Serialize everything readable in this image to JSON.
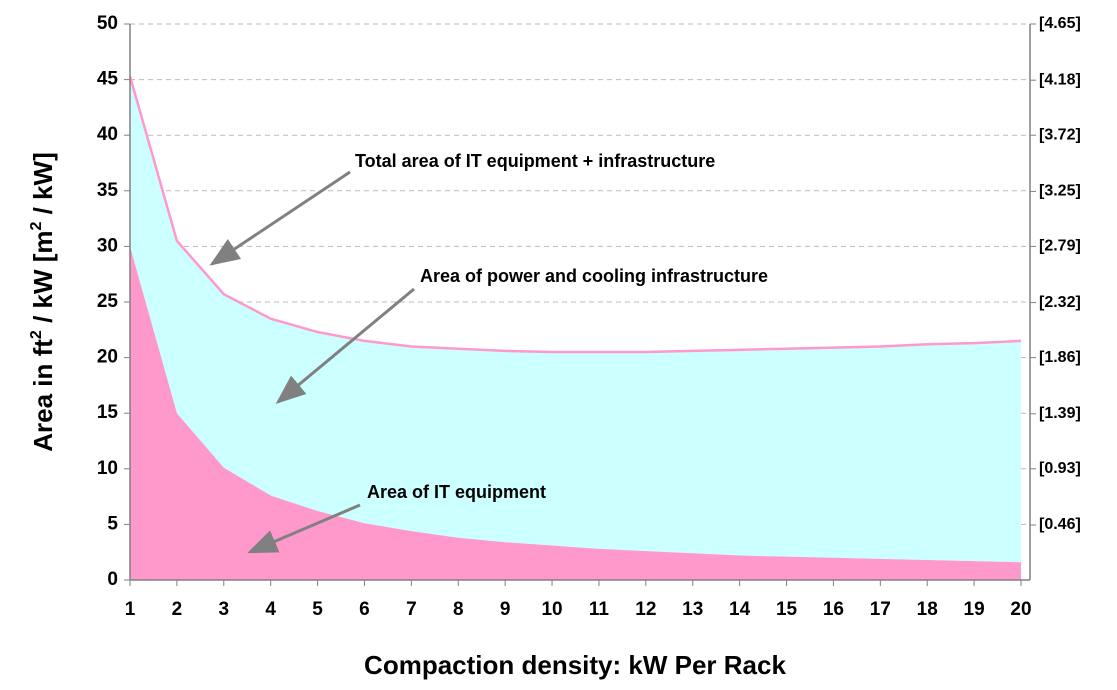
{
  "chart_data": {
    "type": "area",
    "xlabel": "Compaction density: kW Per Rack",
    "ylabel_parts": [
      "Area in ft",
      "2",
      " / kW  [m",
      "2",
      " / kW]"
    ],
    "x": [
      1,
      2,
      3,
      4,
      5,
      6,
      7,
      8,
      9,
      10,
      11,
      12,
      13,
      14,
      15,
      16,
      17,
      18,
      19,
      20
    ],
    "series": [
      {
        "color": "#ff99cc",
        "values": [
          30,
          15,
          10.1,
          7.6,
          6.2,
          5.1,
          4.4,
          3.8,
          3.4,
          3.1,
          2.8,
          2.6,
          2.4,
          2.2,
          2.1,
          2.0,
          1.9,
          1.8,
          1.7,
          1.6
        ]
      },
      {
        "color": "#ccffff",
        "line_color": "#ff99cc",
        "values": [
          45.3,
          30.5,
          25.7,
          23.5,
          22.3,
          21.5,
          21.0,
          20.8,
          20.6,
          20.5,
          20.5,
          20.5,
          20.6,
          20.7,
          20.8,
          20.9,
          21.0,
          21.2,
          21.3,
          21.5
        ]
      }
    ],
    "xlim": [
      1,
      20
    ],
    "xticks": [
      1,
      2,
      3,
      4,
      5,
      6,
      7,
      8,
      9,
      10,
      11,
      12,
      13,
      14,
      15,
      16,
      17,
      18,
      19,
      20
    ],
    "ylim": [
      0,
      50
    ],
    "yticks": [
      0,
      5,
      10,
      15,
      20,
      25,
      30,
      35,
      40,
      45,
      50
    ],
    "y2lim": [
      0,
      4.65
    ],
    "y2ticks": [
      {
        "value": 0.46,
        "label": "[0.46]"
      },
      {
        "value": 0.93,
        "label": "[0.93]"
      },
      {
        "value": 1.39,
        "label": "[1.39]"
      },
      {
        "value": 1.86,
        "label": "[1.86]"
      },
      {
        "value": 2.32,
        "label": "[2.32]"
      },
      {
        "value": 2.79,
        "label": "[2.79]"
      },
      {
        "value": 3.25,
        "label": "[3.25]"
      },
      {
        "value": 3.72,
        "label": "[3.72]"
      },
      {
        "value": 4.18,
        "label": "[4.18]"
      },
      {
        "value": 4.65,
        "label": "[4.65]"
      }
    ],
    "grid": true,
    "annotations": [
      "Total area of IT equipment + infrastructure",
      "Area of power and cooling infrastructure",
      "Area of IT equipment"
    ]
  }
}
